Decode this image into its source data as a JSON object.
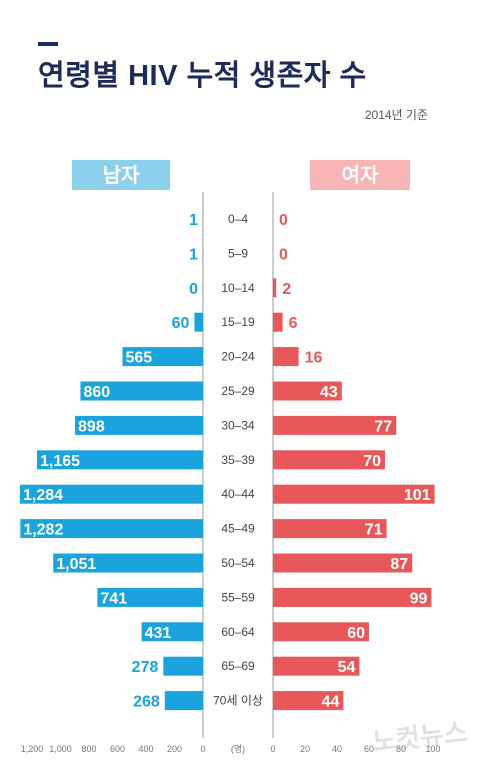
{
  "title": "연령별 HIV 누적 생존자 수",
  "subtitle": "2014년 기준",
  "watermark": "노컷뉴스",
  "colors": {
    "male": "#1aa3dc",
    "female": "#e8585a",
    "male_header_bg": "#8dd0ec",
    "female_header_bg": "#f7b5b6",
    "title": "#1e2a5a"
  },
  "chart_data": {
    "type": "bar",
    "orientation": "horizontal-population-pyramid",
    "categories": [
      "0–4",
      "5–9",
      "10–14",
      "15–19",
      "20–24",
      "25–29",
      "30–34",
      "35–39",
      "40–44",
      "45–49",
      "50–54",
      "55–59",
      "60–64",
      "65–69",
      "70세 이상"
    ],
    "series": [
      {
        "name": "남자",
        "side": "left",
        "color": "#1aa3dc",
        "values": [
          1,
          1,
          0,
          60,
          565,
          860,
          898,
          1165,
          1284,
          1282,
          1051,
          741,
          431,
          278,
          268
        ],
        "labels": [
          "1",
          "1",
          "0",
          "60",
          "565",
          "860",
          "898",
          "1,165",
          "1,284",
          "1,282",
          "1,051",
          "741",
          "431",
          "278",
          "268"
        ]
      },
      {
        "name": "여자",
        "side": "right",
        "color": "#e8585a",
        "values": [
          0,
          0,
          2,
          6,
          16,
          43,
          77,
          70,
          101,
          71,
          87,
          99,
          60,
          54,
          44
        ],
        "labels": [
          "0",
          "0",
          "2",
          "6",
          "16",
          "43",
          "77",
          "70",
          "101",
          "71",
          "87",
          "99",
          "60",
          "54",
          "44"
        ]
      }
    ],
    "left_axis": {
      "ticks": [
        1200,
        1000,
        800,
        600,
        400,
        200,
        0
      ],
      "tick_labels": [
        "1,200",
        "1,000",
        "800",
        "600",
        "400",
        "200",
        "0"
      ],
      "max": 1250
    },
    "right_axis": {
      "ticks": [
        0,
        20,
        40,
        60,
        80,
        100
      ],
      "tick_labels": [
        "0",
        "20",
        "40",
        "60",
        "80",
        "100"
      ],
      "max": 105
    },
    "axis_unit": "(명)"
  }
}
